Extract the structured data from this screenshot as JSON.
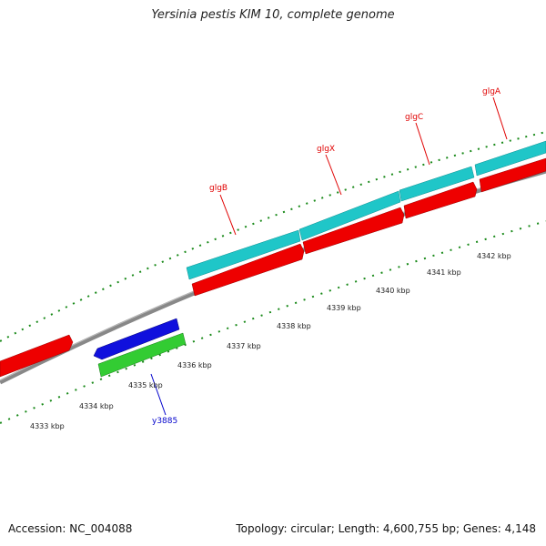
{
  "title": "Yersinia pestis KIM 10, complete genome",
  "footer": {
    "accession": "Accession: NC_004088",
    "stats": "Topology: circular; Length: 4,600,755 bp; Genes: 4,148"
  },
  "scale": {
    "labels": [
      "4333 kbp",
      "4334 kbp",
      "4335 kbp",
      "4336 kbp",
      "4337 kbp",
      "4338 kbp",
      "4339 kbp",
      "4340 kbp",
      "4341 kbp",
      "4342 kbp"
    ]
  },
  "genes": [
    {
      "name": "glgB",
      "color": "#e00000"
    },
    {
      "name": "glgX",
      "color": "#e00000"
    },
    {
      "name": "glgC",
      "color": "#e00000"
    },
    {
      "name": "glgA",
      "color": "#e00000"
    },
    {
      "name": "y3885",
      "color": "#0000cc"
    }
  ],
  "colors": {
    "cyan": "#1fc6c8",
    "red": "#ee0000",
    "blue": "#1010dd",
    "green": "#33cc33",
    "backbone": "#888888",
    "tick": "#1a8a1a"
  }
}
